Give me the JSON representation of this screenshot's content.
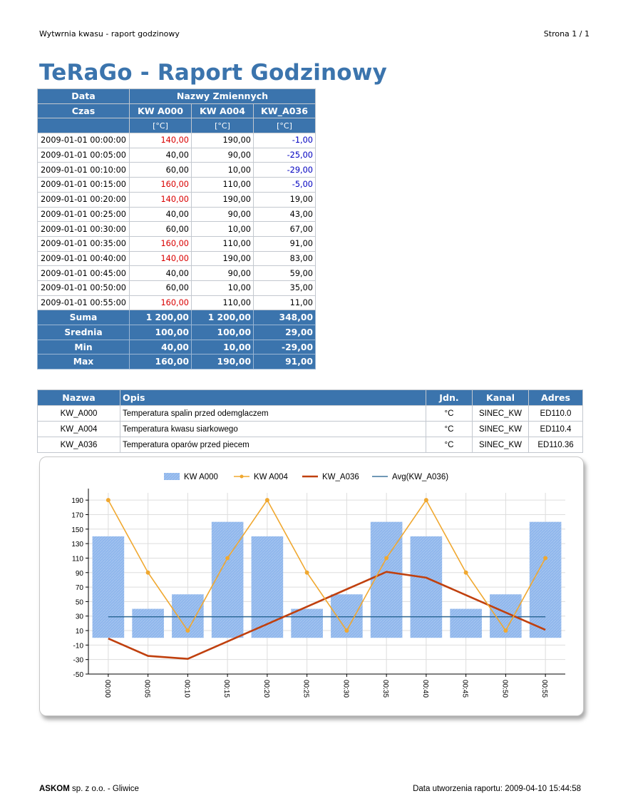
{
  "header": {
    "left": "Wytwrnia kwasu - raport godzinowy",
    "right": "Strona 1 / 1"
  },
  "title": "TeRaGo - Raport Godzinowy",
  "table1": {
    "h_data": "Data",
    "h_czas": "Czas",
    "h_vars": "Nazwy Zmiennych",
    "cols": [
      "KW A000",
      "KW A004",
      "KW_A036"
    ],
    "units": [
      "[°C]",
      "[°C]",
      "[°C]"
    ],
    "rows": [
      {
        "t": "2009-01-01 00:00:00",
        "v": [
          "140,00",
          "190,00",
          "-1,00"
        ],
        "c": [
          "red",
          "",
          "blue"
        ]
      },
      {
        "t": "2009-01-01 00:05:00",
        "v": [
          "40,00",
          "90,00",
          "-25,00"
        ],
        "c": [
          "",
          "",
          "blue"
        ]
      },
      {
        "t": "2009-01-01 00:10:00",
        "v": [
          "60,00",
          "10,00",
          "-29,00"
        ],
        "c": [
          "",
          "",
          "blue"
        ]
      },
      {
        "t": "2009-01-01 00:15:00",
        "v": [
          "160,00",
          "110,00",
          "-5,00"
        ],
        "c": [
          "red",
          "",
          "blue"
        ]
      },
      {
        "t": "2009-01-01 00:20:00",
        "v": [
          "140,00",
          "190,00",
          "19,00"
        ],
        "c": [
          "red",
          "",
          ""
        ]
      },
      {
        "t": "2009-01-01 00:25:00",
        "v": [
          "40,00",
          "90,00",
          "43,00"
        ],
        "c": [
          "",
          "",
          ""
        ]
      },
      {
        "t": "2009-01-01 00:30:00",
        "v": [
          "60,00",
          "10,00",
          "67,00"
        ],
        "c": [
          "",
          "",
          ""
        ]
      },
      {
        "t": "2009-01-01 00:35:00",
        "v": [
          "160,00",
          "110,00",
          "91,00"
        ],
        "c": [
          "red",
          "",
          ""
        ]
      },
      {
        "t": "2009-01-01 00:40:00",
        "v": [
          "140,00",
          "190,00",
          "83,00"
        ],
        "c": [
          "red",
          "",
          ""
        ]
      },
      {
        "t": "2009-01-01 00:45:00",
        "v": [
          "40,00",
          "90,00",
          "59,00"
        ],
        "c": [
          "",
          "",
          ""
        ]
      },
      {
        "t": "2009-01-01 00:50:00",
        "v": [
          "60,00",
          "10,00",
          "35,00"
        ],
        "c": [
          "",
          "",
          ""
        ]
      },
      {
        "t": "2009-01-01 00:55:00",
        "v": [
          "160,00",
          "110,00",
          "11,00"
        ],
        "c": [
          "red",
          "",
          ""
        ]
      }
    ],
    "summary": [
      {
        "label": "Suma",
        "v": [
          "1 200,00",
          "1 200,00",
          "348,00"
        ]
      },
      {
        "label": "Srednia",
        "v": [
          "100,00",
          "100,00",
          "29,00"
        ]
      },
      {
        "label": "Min",
        "v": [
          "40,00",
          "10,00",
          "-29,00"
        ]
      },
      {
        "label": "Max",
        "v": [
          "160,00",
          "190,00",
          "91,00"
        ]
      }
    ]
  },
  "table2": {
    "headers": [
      "Nazwa",
      "Opis",
      "Jdn.",
      "Kanal",
      "Adres"
    ],
    "rows": [
      [
        "KW_A000",
        "Temperatura spalin przed odemglaczem",
        "°C",
        "SINEC_KW",
        "ED110.0"
      ],
      [
        "KW_A004",
        "Temperatura kwasu siarkowego",
        "°C",
        "SINEC_KW",
        "ED110.4"
      ],
      [
        "KW_A036",
        "Temperatura oparów przed piecem",
        "°C",
        "SINEC_KW",
        "ED110.36"
      ]
    ]
  },
  "chart_data": {
    "type": "bar",
    "categories": [
      "00:00",
      "00:05",
      "00:10",
      "00:15",
      "00:20",
      "00:25",
      "00:30",
      "00:35",
      "00:40",
      "00:45",
      "00:50",
      "00:55"
    ],
    "series": [
      {
        "name": "KW A000",
        "type": "bar",
        "color": "#8fb6ec",
        "values": [
          140,
          40,
          60,
          160,
          140,
          40,
          60,
          160,
          140,
          40,
          60,
          160
        ]
      },
      {
        "name": "KW A004",
        "type": "line",
        "color": "#f0a830",
        "values": [
          190,
          90,
          10,
          110,
          190,
          90,
          10,
          110,
          190,
          90,
          10,
          110
        ]
      },
      {
        "name": "KW_A036",
        "type": "line",
        "color": "#c0400e",
        "values": [
          -1,
          -25,
          -29,
          -5,
          19,
          43,
          67,
          91,
          83,
          59,
          35,
          11
        ]
      },
      {
        "name": "Avg(KW_A036)",
        "type": "line",
        "color": "#1a5a8a",
        "values": [
          29,
          29,
          29,
          29,
          29,
          29,
          29,
          29,
          29,
          29,
          29,
          29
        ]
      }
    ],
    "yticks": [
      190,
      170,
      150,
      130,
      110,
      90,
      70,
      50,
      30,
      10,
      -10,
      -30,
      -50
    ],
    "ylim": [
      -50,
      200
    ],
    "legend": "top",
    "grid": true
  },
  "footer": {
    "left_bold": "ASKOM",
    "left_rest": " sp. z o.o. - Gliwice",
    "right": "Data utworzenia raportu: 2009-04-10 15:44:58"
  }
}
